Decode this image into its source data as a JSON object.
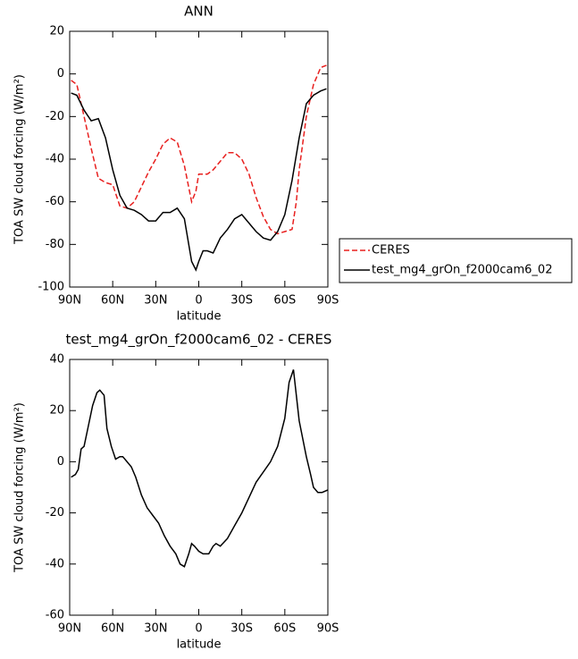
{
  "chart_data": [
    {
      "type": "line",
      "title": "ANN",
      "xlabel": "latitude",
      "ylabel": "TOA SW cloud forcing (W/m²)",
      "x": [
        89,
        85,
        80,
        75,
        70,
        65,
        60,
        55,
        50,
        45,
        40,
        35,
        30,
        25,
        20,
        15,
        10,
        5,
        2,
        0,
        -3,
        -6,
        -10,
        -15,
        -20,
        -25,
        -30,
        -35,
        -40,
        -45,
        -50,
        -55,
        -60,
        -65,
        -68,
        -70,
        -75,
        -80,
        -85,
        -89
      ],
      "series": [
        {
          "name": "CERES",
          "color": "#e8201f",
          "line_style": "dashed",
          "values": [
            -3,
            -5,
            -20,
            -35,
            -49,
            -51,
            -52,
            -62,
            -63,
            -60,
            -53,
            -46,
            -40,
            -33,
            -30,
            -32,
            -43,
            -60,
            -55,
            -47,
            -47,
            -47,
            -45,
            -41,
            -37,
            -37,
            -40,
            -47,
            -58,
            -67,
            -73,
            -75,
            -74,
            -73,
            -60,
            -45,
            -20,
            -5,
            3,
            4
          ]
        },
        {
          "name": "test_mg4_grOn_f2000cam6_02",
          "color": "#000000",
          "line_style": "solid",
          "values": [
            -9,
            -10,
            -17,
            -22,
            -21,
            -30,
            -45,
            -57,
            -63,
            -64,
            -66,
            -69,
            -69,
            -65,
            -65,
            -63,
            -68,
            -88,
            -92,
            -88,
            -83,
            -83,
            -84,
            -77,
            -73,
            -68,
            -66,
            -70,
            -74,
            -77,
            -78,
            -74,
            -66,
            -50,
            -38,
            -30,
            -14,
            -10,
            -8,
            -7
          ]
        }
      ],
      "xlim": [
        90,
        -90
      ],
      "xticks": [
        {
          "value": 90,
          "label": "90N"
        },
        {
          "value": 60,
          "label": "60N"
        },
        {
          "value": 30,
          "label": "30N"
        },
        0,
        {
          "value": -30,
          "label": "30S"
        },
        {
          "value": -60,
          "label": "60S"
        },
        {
          "value": -90,
          "label": "90S"
        }
      ],
      "ylim": [
        -100,
        20
      ],
      "yticks": [
        -100,
        -80,
        -60,
        -40,
        -20,
        0,
        20
      ],
      "legend": "right"
    },
    {
      "type": "line",
      "title": "test_mg4_grOn_f2000cam6_02 - CERES",
      "xlabel": "latitude",
      "ylabel": "TOA SW cloud forcing (W/m²)",
      "x": [
        89,
        86,
        84,
        82,
        80,
        77,
        74,
        71,
        69,
        66,
        64,
        61,
        58,
        55,
        53,
        50,
        47,
        44,
        40,
        36,
        32,
        28,
        24,
        20,
        16,
        13,
        10,
        7,
        5,
        3,
        0,
        -3,
        -7,
        -10,
        -12,
        -15,
        -20,
        -25,
        -30,
        -35,
        -40,
        -45,
        -50,
        -55,
        -60,
        -63,
        -66,
        -70,
        -75,
        -78,
        -80,
        -83,
        -86,
        -90
      ],
      "series": [
        {
          "color": "#000000",
          "line_style": "solid",
          "values": [
            -6,
            -5,
            -3,
            5,
            6,
            14,
            22,
            27,
            28,
            26,
            13,
            6,
            1,
            2,
            2,
            0,
            -2,
            -6,
            -13,
            -18,
            -21,
            -24,
            -29,
            -33,
            -36,
            -40,
            -41,
            -36,
            -32,
            -33,
            -35,
            -36,
            -36,
            -33,
            -32,
            -33,
            -30,
            -25,
            -20,
            -14,
            -8,
            -4,
            0,
            6,
            17,
            31,
            36,
            16,
            2,
            -5,
            -10,
            -12,
            -12,
            -11
          ]
        }
      ],
      "xlim": [
        90,
        -90
      ],
      "xticks": [
        {
          "value": 90,
          "label": "90N"
        },
        {
          "value": 60,
          "label": "60N"
        },
        {
          "value": 30,
          "label": "30N"
        },
        0,
        {
          "value": -30,
          "label": "30S"
        },
        {
          "value": -60,
          "label": "60S"
        },
        {
          "value": -90,
          "label": "90S"
        }
      ],
      "ylim": [
        -60,
        40
      ],
      "yticks": [
        -60,
        -40,
        -20,
        0,
        20,
        40
      ]
    }
  ]
}
